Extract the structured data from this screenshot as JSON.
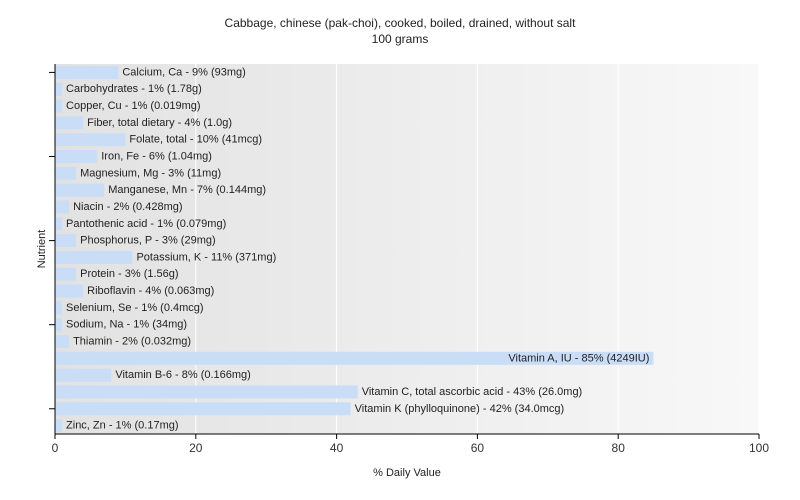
{
  "chart_data": {
    "type": "bar",
    "orientation": "horizontal",
    "title": "Cabbage, chinese (pak-choi), cooked, boiled, drained, without salt",
    "subtitle": "100 grams",
    "xlabel": "% Daily Value",
    "ylabel": "Nutrient",
    "xlim": [
      0,
      100
    ],
    "xticks": [
      "0",
      "20",
      "40",
      "60",
      "80",
      "100"
    ],
    "grid": true,
    "colors": {
      "bar": "#c9ddf7",
      "grid": "#ffffff",
      "plot_background": "#ebebeb",
      "axis": "#000000"
    },
    "categories": [
      "Calcium, Ca",
      "Carbohydrates",
      "Copper, Cu",
      "Fiber, total dietary",
      "Folate, total",
      "Iron, Fe",
      "Magnesium, Mg",
      "Manganese, Mn",
      "Niacin",
      "Pantothenic acid",
      "Phosphorus, P",
      "Potassium, K",
      "Protein",
      "Riboflavin",
      "Selenium, Se",
      "Sodium, Na",
      "Thiamin",
      "Vitamin A, IU",
      "Vitamin B-6",
      "Vitamin C, total ascorbic acid",
      "Vitamin K (phylloquinone)",
      "Zinc, Zn"
    ],
    "values": [
      9,
      1,
      1,
      4,
      10,
      6,
      3,
      7,
      2,
      1,
      3,
      11,
      3,
      4,
      1,
      1,
      2,
      85,
      8,
      43,
      42,
      1
    ],
    "labels": [
      "Calcium, Ca - 9% (93mg)",
      "Carbohydrates - 1% (1.78g)",
      "Copper, Cu - 1% (0.019mg)",
      "Fiber, total dietary - 4% (1.0g)",
      "Folate, total - 10% (41mcg)",
      "Iron, Fe - 6% (1.04mg)",
      "Magnesium, Mg - 3% (11mg)",
      "Manganese, Mn - 7% (0.144mg)",
      "Niacin - 2% (0.428mg)",
      "Pantothenic acid - 1% (0.079mg)",
      "Phosphorus, P - 3% (29mg)",
      "Potassium, K - 11% (371mg)",
      "Protein - 3% (1.56g)",
      "Riboflavin - 4% (0.063mg)",
      "Selenium, Se - 1% (0.4mcg)",
      "Sodium, Na - 1% (34mg)",
      "Thiamin - 2% (0.032mg)",
      "Vitamin A, IU - 85% (4249IU)",
      "Vitamin B-6 - 8% (0.166mg)",
      "Vitamin C, total ascorbic acid - 43% (26.0mg)",
      "Vitamin K (phylloquinone) - 42% (34.0mcg)",
      "Zinc, Zn - 1% (0.17mg)"
    ]
  }
}
